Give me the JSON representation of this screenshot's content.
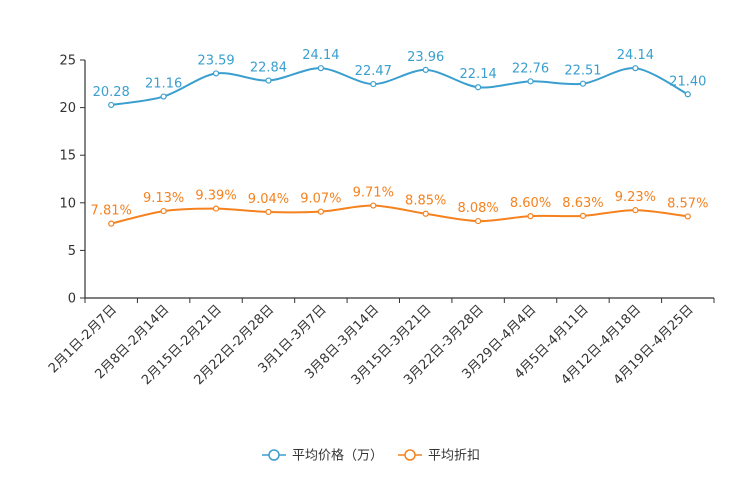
{
  "chart_data": {
    "type": "line",
    "categories": [
      "2月1日-2月7日",
      "2月8日-2月14日",
      "2月15日-2月21日",
      "2月22日-2月28日",
      "3月1日-3月7日",
      "3月8日-3月14日",
      "3月15日-3月21日",
      "3月22日-3月28日",
      "3月29日-4月4日",
      "4月5日-4月11日",
      "4月12日-4月18日",
      "4月19日-4月25日"
    ],
    "ylim": [
      0,
      25
    ],
    "yticks": [
      0,
      5,
      10,
      15,
      20,
      25
    ],
    "grid": false,
    "legend_position": "bottom-center",
    "series": [
      {
        "name": "平均价格（万）",
        "color": "#3a9fcf",
        "values": [
          20.28,
          21.16,
          23.59,
          22.84,
          24.14,
          22.47,
          23.96,
          22.14,
          22.76,
          22.51,
          24.14,
          21.4
        ],
        "labels": [
          "20.28",
          "21.16",
          "23.59",
          "22.84",
          "24.14",
          "22.47",
          "23.96",
          "22.14",
          "22.76",
          "22.51",
          "24.14",
          "21.40"
        ]
      },
      {
        "name": "平均折扣",
        "color": "#f5821f",
        "values": [
          7.81,
          9.13,
          9.39,
          9.04,
          9.07,
          9.71,
          8.85,
          8.08,
          8.6,
          8.63,
          9.23,
          8.57
        ],
        "labels": [
          "7.81%",
          "9.13%",
          "9.39%",
          "9.04%",
          "9.07%",
          "9.71%",
          "8.85%",
          "8.08%",
          "8.60%",
          "8.63%",
          "9.23%",
          "8.57%"
        ]
      }
    ]
  }
}
